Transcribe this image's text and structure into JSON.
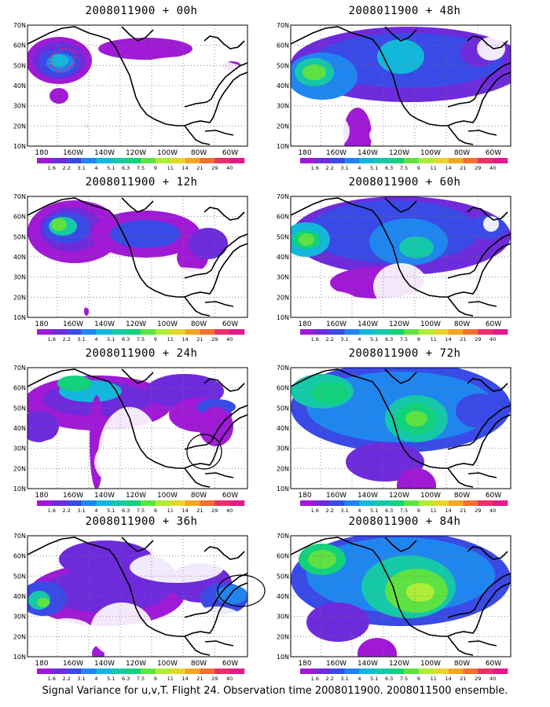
{
  "colorbar": {
    "levels": [
      "1.6",
      "2.2",
      "3.1",
      "4",
      "5.1",
      "6.3",
      "7.5",
      "9",
      "11",
      "14",
      "21",
      "29",
      "40"
    ],
    "colors": [
      "#a01ad6",
      "#6e2bdc",
      "#3a4ae6",
      "#1f86f0",
      "#12b8dc",
      "#15c9a8",
      "#12d27a",
      "#5ee242",
      "#aeec38",
      "#e6d62a",
      "#f2a626",
      "#f07030",
      "#ea2f6c",
      "#e31a8c"
    ]
  },
  "axes": {
    "x_ticks": [
      "180",
      "160W",
      "140W",
      "120W",
      "100W",
      "80W",
      "60W"
    ],
    "y_ticks": [
      "70N",
      "60N",
      "50N",
      "40N",
      "30N",
      "20N",
      "10N"
    ]
  },
  "panels": [
    {
      "id": "p00",
      "title": "2008011900 + 00h"
    },
    {
      "id": "p12",
      "title": "2008011900 + 12h"
    },
    {
      "id": "p24",
      "title": "2008011900 + 24h"
    },
    {
      "id": "p36",
      "title": "2008011900 + 36h"
    },
    {
      "id": "p48",
      "title": "2008011900 + 48h"
    },
    {
      "id": "p60",
      "title": "2008011900 + 60h"
    },
    {
      "id": "p72",
      "title": "2008011900 + 72h"
    },
    {
      "id": "p84",
      "title": "2008011900 + 84h"
    }
  ],
  "footer": "Signal Variance for u,v,T. Flight 24. Observation time 2008011900. 2008011500 ensemble."
}
